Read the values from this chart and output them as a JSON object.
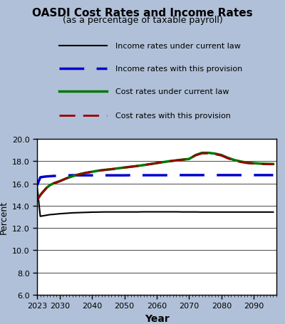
{
  "title": "OASDI Cost Rates and Income Rates",
  "subtitle": "(as a percentage of taxable payroll)",
  "xlabel": "Year",
  "ylabel": "Percent",
  "ylim": [
    6.0,
    20.0
  ],
  "yticks": [
    6.0,
    8.0,
    10.0,
    12.0,
    14.0,
    16.0,
    18.0,
    20.0
  ],
  "xlim": [
    2023,
    2097
  ],
  "xticks": [
    2023,
    2030,
    2040,
    2050,
    2060,
    2070,
    2080,
    2090
  ],
  "background_color": "#b0c0d8",
  "plot_bg_color": "#ffffff",
  "legend_labels": [
    "Income rates under current law",
    "Income rates with this provision",
    "Cost rates under current law",
    "Cost rates with this provision"
  ],
  "income_current_law": {
    "years": [
      2023,
      2024,
      2025,
      2026,
      2027,
      2028,
      2029,
      2030,
      2032,
      2034,
      2036,
      2038,
      2040,
      2042,
      2044,
      2046,
      2048,
      2050,
      2052,
      2054,
      2056,
      2058,
      2060,
      2062,
      2064,
      2066,
      2068,
      2070,
      2072,
      2074,
      2076,
      2078,
      2080,
      2082,
      2084,
      2086,
      2088,
      2090,
      2092,
      2094,
      2096
    ],
    "values": [
      15.8,
      13.05,
      13.1,
      13.15,
      13.2,
      13.22,
      13.25,
      13.28,
      13.32,
      13.36,
      13.38,
      13.4,
      13.42,
      13.43,
      13.44,
      13.44,
      13.44,
      13.44,
      13.44,
      13.44,
      13.45,
      13.45,
      13.45,
      13.45,
      13.45,
      13.45,
      13.44,
      13.44,
      13.44,
      13.43,
      13.43,
      13.43,
      13.43,
      13.43,
      13.43,
      13.43,
      13.43,
      13.43,
      13.43,
      13.43,
      13.43
    ],
    "color": "#000000",
    "linestyle": "-",
    "linewidth": 1.5
  },
  "income_provision": {
    "years": [
      2023,
      2024,
      2025,
      2026,
      2027,
      2028,
      2029,
      2030,
      2032,
      2034,
      2036,
      2038,
      2040,
      2042,
      2044,
      2046,
      2048,
      2050,
      2052,
      2054,
      2056,
      2058,
      2060,
      2062,
      2064,
      2066,
      2068,
      2070,
      2072,
      2074,
      2076,
      2078,
      2080,
      2082,
      2084,
      2086,
      2088,
      2090,
      2092,
      2094,
      2096
    ],
    "values": [
      15.8,
      16.55,
      16.6,
      16.63,
      16.65,
      16.67,
      16.68,
      16.7,
      16.72,
      16.74,
      16.73,
      16.73,
      16.73,
      16.73,
      16.73,
      16.73,
      16.73,
      16.73,
      16.74,
      16.74,
      16.74,
      16.74,
      16.74,
      16.74,
      16.74,
      16.75,
      16.75,
      16.75,
      16.75,
      16.75,
      16.75,
      16.75,
      16.75,
      16.75,
      16.75,
      16.75,
      16.75,
      16.75,
      16.75,
      16.75,
      16.75
    ],
    "color": "#0000cc",
    "linestyle": "--",
    "linewidth": 2.5
  },
  "cost_current_law": {
    "years": [
      2023,
      2024,
      2025,
      2026,
      2027,
      2028,
      2029,
      2030,
      2032,
      2034,
      2036,
      2038,
      2040,
      2042,
      2044,
      2046,
      2048,
      2050,
      2052,
      2054,
      2056,
      2058,
      2060,
      2062,
      2064,
      2066,
      2068,
      2070,
      2072,
      2074,
      2076,
      2078,
      2080,
      2082,
      2084,
      2086,
      2088,
      2090,
      2092,
      2094,
      2096
    ],
    "values": [
      14.5,
      14.95,
      15.3,
      15.62,
      15.85,
      16.0,
      16.1,
      16.2,
      16.45,
      16.65,
      16.82,
      16.95,
      17.05,
      17.15,
      17.22,
      17.28,
      17.36,
      17.43,
      17.5,
      17.57,
      17.65,
      17.74,
      17.83,
      17.92,
      18.0,
      18.07,
      18.14,
      18.2,
      18.55,
      18.75,
      18.75,
      18.68,
      18.55,
      18.3,
      18.1,
      17.97,
      17.87,
      17.82,
      17.78,
      17.76,
      17.75
    ],
    "color": "#007700",
    "linestyle": "-",
    "linewidth": 2.5
  },
  "cost_provision": {
    "years": [
      2023,
      2024,
      2025,
      2026,
      2027,
      2028,
      2029,
      2030,
      2032,
      2034,
      2036,
      2038,
      2040,
      2042,
      2044,
      2046,
      2048,
      2050,
      2052,
      2054,
      2056,
      2058,
      2060,
      2062,
      2064,
      2066,
      2068,
      2070,
      2072,
      2074,
      2076,
      2078,
      2080,
      2082,
      2084,
      2086,
      2088,
      2090,
      2092,
      2094,
      2096
    ],
    "values": [
      14.5,
      14.95,
      15.3,
      15.62,
      15.85,
      16.0,
      16.1,
      16.2,
      16.45,
      16.65,
      16.82,
      16.95,
      17.05,
      17.15,
      17.22,
      17.28,
      17.36,
      17.43,
      17.5,
      17.57,
      17.65,
      17.74,
      17.83,
      17.92,
      18.0,
      18.07,
      18.14,
      18.2,
      18.52,
      18.7,
      18.7,
      18.63,
      18.5,
      18.25,
      18.05,
      17.92,
      17.82,
      17.78,
      17.75,
      17.73,
      17.72
    ],
    "color": "#990000",
    "linestyle": "--",
    "linewidth": 2.0
  }
}
